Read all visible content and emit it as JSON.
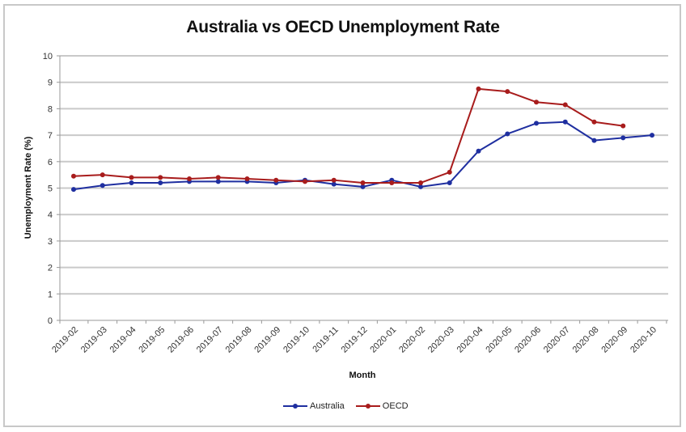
{
  "chart_data": {
    "type": "line",
    "title": "Australia vs OECD Unemployment Rate",
    "xlabel": "Month",
    "ylabel": "Unemployment Rate (%)",
    "ylim": [
      0,
      10
    ],
    "yticks": [
      0,
      1,
      2,
      3,
      4,
      5,
      6,
      7,
      8,
      9,
      10
    ],
    "grid": true,
    "legend_position": "bottom",
    "categories": [
      "2019-02",
      "2019-03",
      "2019-04",
      "2019-05",
      "2019-06",
      "2019-07",
      "2019-08",
      "2019-09",
      "2019-10",
      "2019-11",
      "2019-12",
      "2020-01",
      "2020-02",
      "2020-03",
      "2020-04",
      "2020-05",
      "2020-06",
      "2020-07",
      "2020-08",
      "2020-09",
      "2020-10"
    ],
    "series": [
      {
        "name": "Australia",
        "color": "#1f2fa0",
        "values": [
          4.95,
          5.1,
          5.2,
          5.2,
          5.25,
          5.25,
          5.25,
          5.2,
          5.3,
          5.15,
          5.05,
          5.3,
          5.05,
          5.2,
          6.4,
          7.05,
          7.45,
          7.5,
          6.8,
          6.9,
          7.0
        ]
      },
      {
        "name": "OECD",
        "color": "#a81c1c",
        "values": [
          5.45,
          5.5,
          5.4,
          5.4,
          5.35,
          5.4,
          5.35,
          5.3,
          5.25,
          5.3,
          5.2,
          5.2,
          5.2,
          5.6,
          8.75,
          8.65,
          8.25,
          8.15,
          7.5,
          7.35,
          null
        ]
      }
    ]
  }
}
